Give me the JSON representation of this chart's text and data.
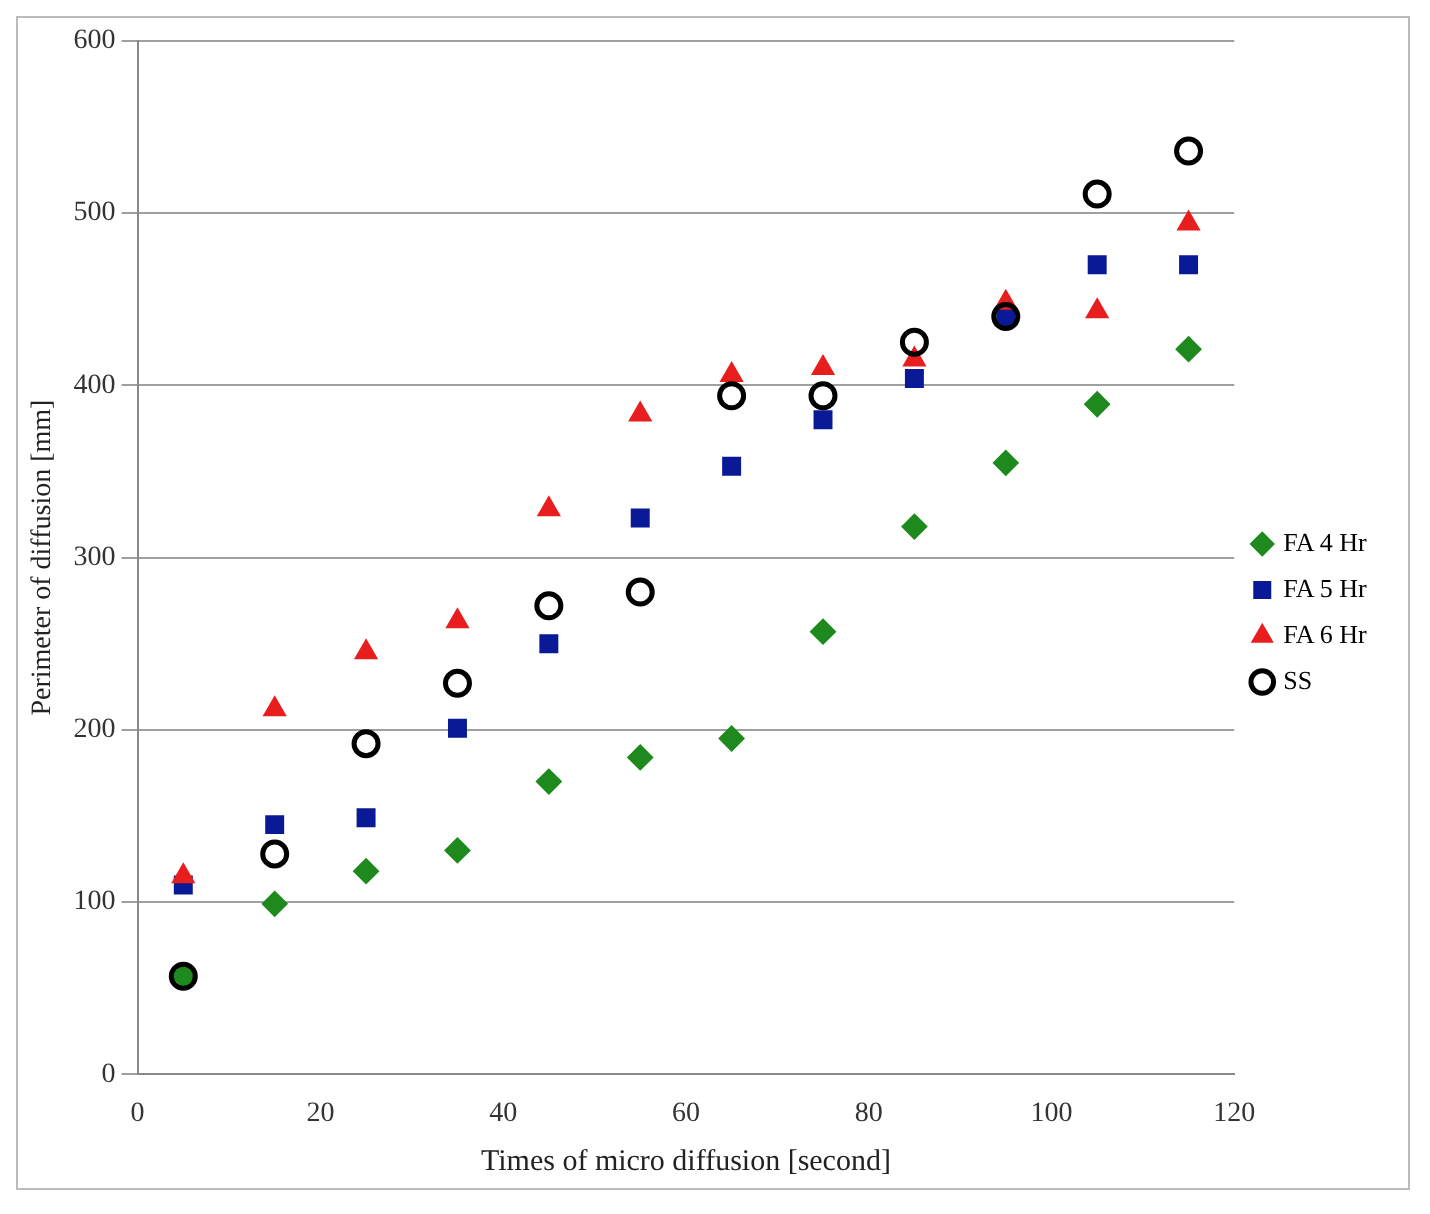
{
  "chart_data": {
    "type": "scatter",
    "xlabel": "Times of micro diffusion [second]",
    "ylabel": "Perimeter of diffusion [mm]",
    "x": [
      5,
      15,
      25,
      35,
      45,
      55,
      65,
      75,
      85,
      95,
      105,
      115
    ],
    "xlim": [
      0,
      120
    ],
    "xticks": [
      0,
      20,
      40,
      60,
      80,
      100,
      120
    ],
    "ylim": [
      0,
      600
    ],
    "yticks": [
      0,
      100,
      200,
      300,
      400,
      500,
      600
    ],
    "grid": "y",
    "legend": "right",
    "series": [
      {
        "name": "FA 4 Hr",
        "color": "#1e8a1e",
        "marker": "diamond",
        "values": [
          57,
          99,
          118,
          130,
          170,
          184,
          195,
          257,
          318,
          355,
          389,
          421
        ]
      },
      {
        "name": "FA 5 Hr",
        "color": "#0a1a96",
        "marker": "square",
        "values": [
          110,
          145,
          149,
          201,
          250,
          323,
          353,
          380,
          404,
          440,
          470,
          470
        ]
      },
      {
        "name": "FA 6 Hr",
        "color": "#e81e1e",
        "marker": "triangle",
        "values": [
          115,
          212,
          245,
          263,
          328,
          383,
          406,
          410,
          415,
          448,
          443,
          494
        ]
      },
      {
        "name": "SS",
        "color": "#000000",
        "marker": "circle",
        "values": [
          57,
          128,
          192,
          227,
          272,
          280,
          394,
          394,
          425,
          440,
          511,
          536
        ]
      }
    ]
  }
}
